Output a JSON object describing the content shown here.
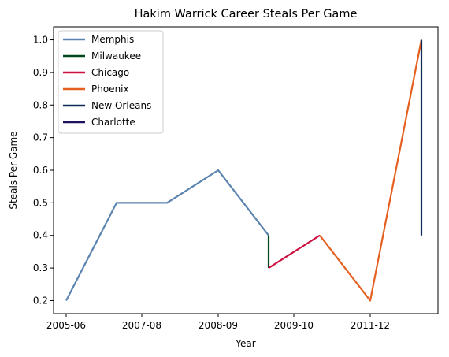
{
  "chart_data": {
    "type": "line",
    "title": "Hakim Warrick Career Steals Per Game",
    "xlabel": "Year",
    "ylabel": "Steals Per Game",
    "x_tick_labels": [
      "2005-06",
      "2007-08",
      "2008-09",
      "2009-10",
      "2011-12"
    ],
    "y_tick_labels": [
      "0.2",
      "0.3",
      "0.4",
      "0.5",
      "0.6",
      "0.7",
      "0.8",
      "0.9",
      "1.0"
    ],
    "ylim": [
      0.16,
      1.04
    ],
    "legend_placement": "top-left",
    "grid": false,
    "series": [
      {
        "name": "Memphis",
        "color": "#5b84b1",
        "points": [
          [
            "2005-06",
            0.2
          ],
          [
            "2006-07",
            0.5
          ],
          [
            "2007-08",
            0.5
          ],
          [
            "2008-09",
            0.6
          ],
          [
            "2009-10",
            0.4
          ]
        ]
      },
      {
        "name": "Milwaukee",
        "color": "#00471b",
        "points": [
          [
            "2009-10",
            0.4
          ],
          [
            "2009-10",
            0.3
          ]
        ]
      },
      {
        "name": "Chicago",
        "color": "#ce1141",
        "points": [
          [
            "2009-10",
            0.3
          ],
          [
            "2010-11",
            0.4
          ]
        ]
      },
      {
        "name": "Phoenix",
        "color": "#e56020",
        "points": [
          [
            "2010-11",
            0.4
          ],
          [
            "2011-12",
            0.2
          ],
          [
            "2012-13",
            1.0
          ]
        ]
      },
      {
        "name": "New Orleans",
        "color": "#0c2c56",
        "points": [
          [
            "2012-13",
            1.0
          ],
          [
            "2012-13",
            0.4
          ]
        ]
      },
      {
        "name": "Charlotte",
        "color": "#1d1160",
        "points": []
      }
    ]
  }
}
